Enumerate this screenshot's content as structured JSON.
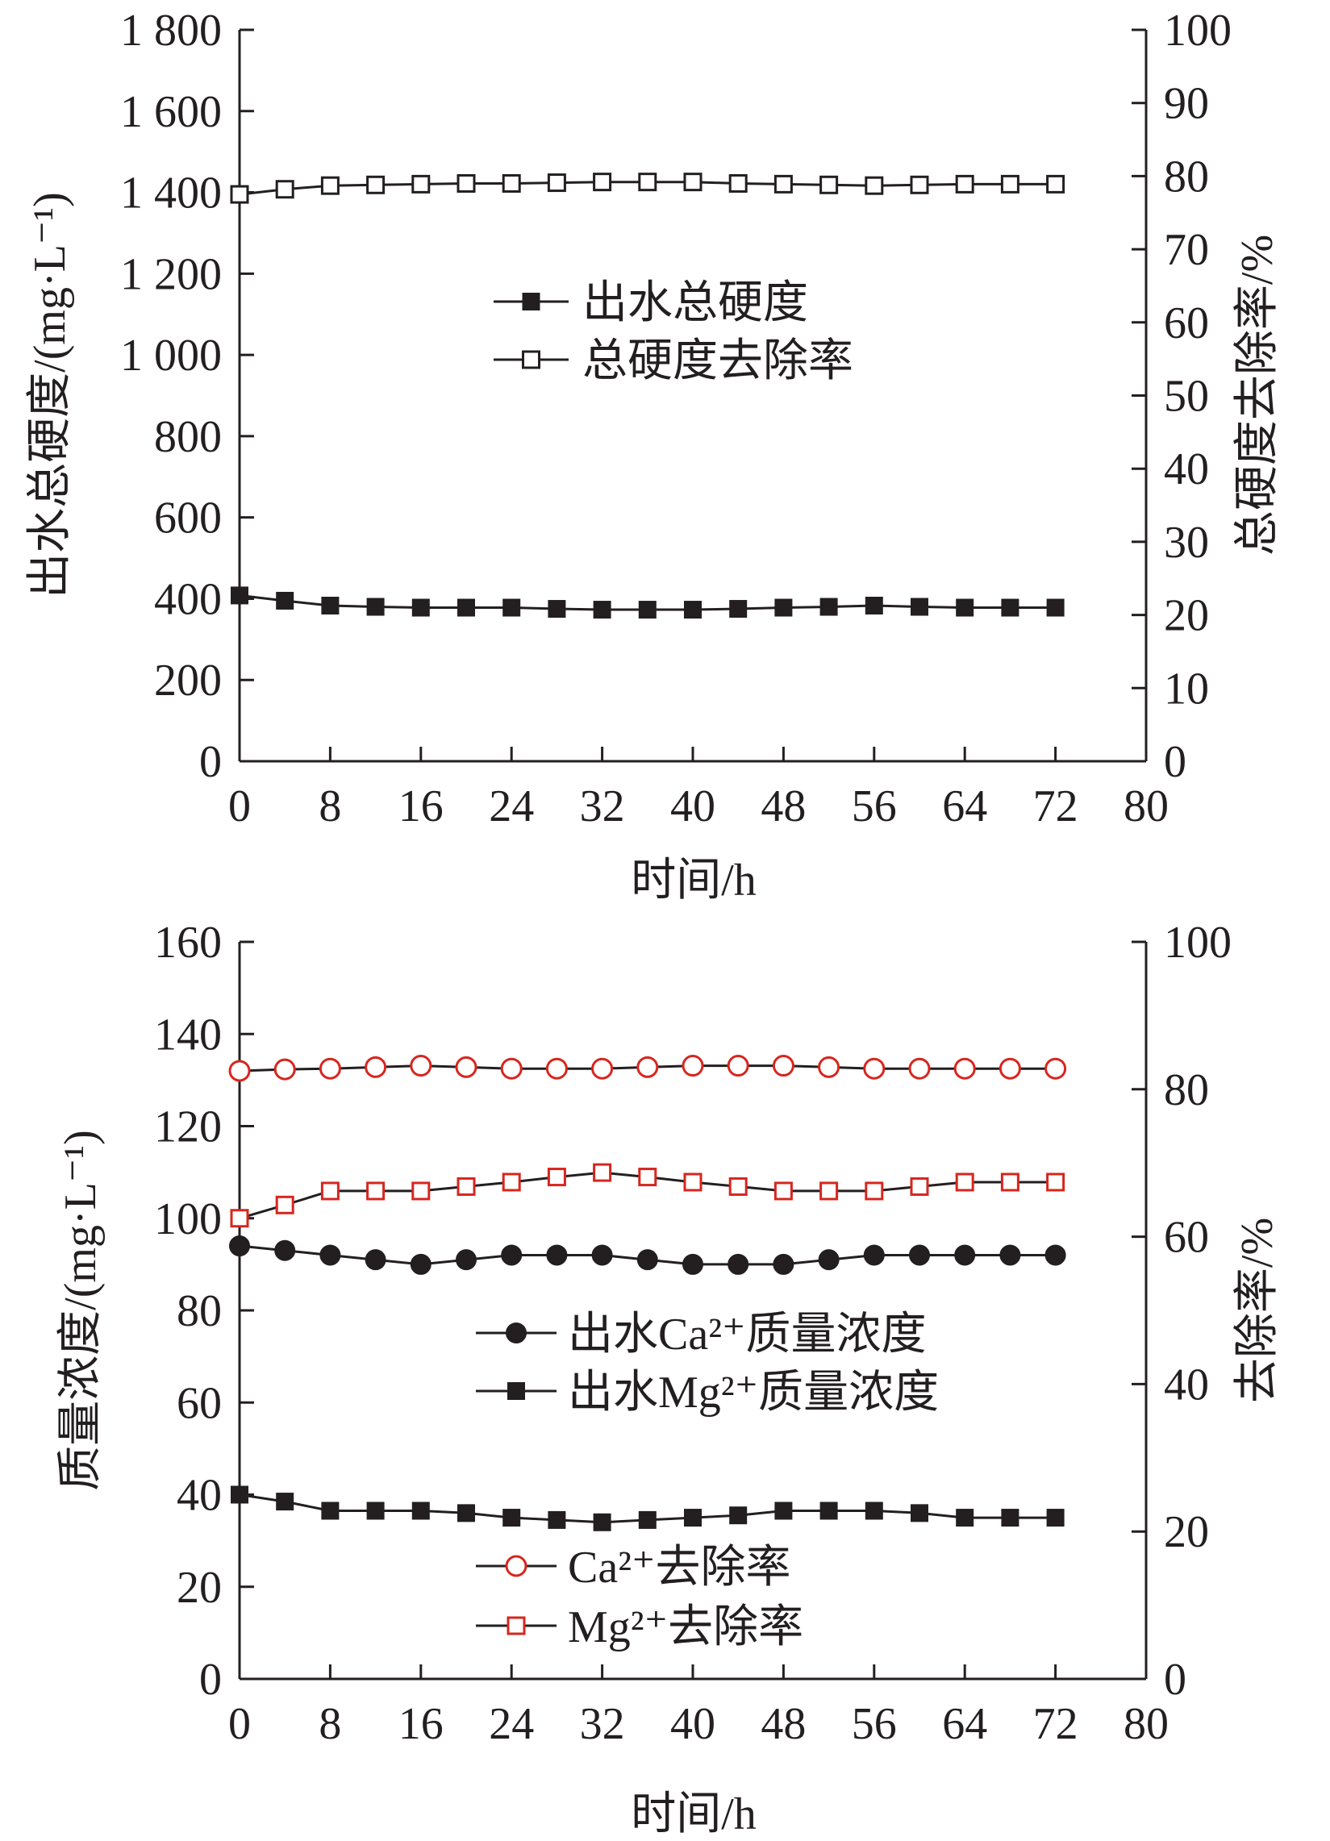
{
  "colors": {
    "axis": "#231f20",
    "dark_marker": "#231f20",
    "red_marker": "#d7261e"
  },
  "chart_data": [
    {
      "type": "line",
      "x": [
        0,
        4,
        8,
        12,
        16,
        20,
        24,
        28,
        32,
        36,
        40,
        44,
        48,
        52,
        56,
        60,
        64,
        68,
        72
      ],
      "xlim": [
        0,
        80
      ],
      "xticks": [
        "0",
        "8",
        "16",
        "24",
        "32",
        "40",
        "48",
        "56",
        "64",
        "72",
        "80"
      ],
      "xlabel": "时间/h",
      "ylabel_left": "出水总硬度/(mg·L⁻¹)",
      "ylim_left": [
        0,
        1800
      ],
      "yticks_left": [
        "0",
        "200",
        "400",
        "600",
        "800",
        "1 000",
        "1 200",
        "1 400",
        "1 600",
        "1 800"
      ],
      "ylabel_right": "总硬度去除率/%",
      "ylim_right": [
        0,
        100
      ],
      "yticks_right": [
        "0",
        "10",
        "20",
        "30",
        "40",
        "50",
        "60",
        "70",
        "80",
        "90",
        "100"
      ],
      "grid": false,
      "series": [
        {
          "name": "出水总硬度",
          "axis": "left",
          "marker": "square-filled",
          "color": "#231f20",
          "values": [
            408,
            395,
            383,
            380,
            378,
            378,
            378,
            375,
            373,
            373,
            373,
            375,
            378,
            380,
            383,
            380,
            378,
            378,
            378
          ]
        },
        {
          "name": "总硬度去除率",
          "axis": "right",
          "marker": "square-open",
          "color": "#231f20",
          "values": [
            77.5,
            78.2,
            78.7,
            78.8,
            78.9,
            79.0,
            79.0,
            79.1,
            79.2,
            79.2,
            79.2,
            79.0,
            78.9,
            78.8,
            78.7,
            78.8,
            78.9,
            78.9,
            78.9
          ]
        }
      ]
    },
    {
      "type": "line",
      "x": [
        0,
        4,
        8,
        12,
        16,
        20,
        24,
        28,
        32,
        36,
        40,
        44,
        48,
        52,
        56,
        60,
        64,
        68,
        72
      ],
      "xlim": [
        0,
        80
      ],
      "xticks": [
        "0",
        "8",
        "16",
        "24",
        "32",
        "40",
        "48",
        "56",
        "64",
        "72",
        "80"
      ],
      "xlabel": "时间/h",
      "ylabel_left": "质量浓度/(mg·L⁻¹)",
      "ylim_left": [
        0,
        160
      ],
      "yticks_left": [
        "0",
        "20",
        "40",
        "60",
        "80",
        "100",
        "120",
        "140",
        "160"
      ],
      "ylabel_right": "去除率/%",
      "ylim_right": [
        0,
        100
      ],
      "yticks_right": [
        "0",
        "20",
        "40",
        "60",
        "80",
        "100"
      ],
      "grid": false,
      "series": [
        {
          "name": "出水Ca²⁺质量浓度",
          "axis": "left",
          "marker": "circle-filled",
          "color": "#231f20",
          "values": [
            94,
            93,
            92,
            91,
            90,
            91,
            92,
            92,
            92,
            91,
            90,
            90,
            90,
            91,
            92,
            92,
            92,
            92,
            92
          ]
        },
        {
          "name": "出水Mg²⁺质量浓度",
          "axis": "left",
          "marker": "square-filled",
          "color": "#231f20",
          "values": [
            40,
            38.5,
            36.5,
            36.5,
            36.5,
            36,
            35,
            34.5,
            34,
            34.5,
            35,
            35.5,
            36.5,
            36.5,
            36.5,
            36,
            35,
            35,
            35
          ]
        },
        {
          "name": "Ca²⁺去除率",
          "axis": "right",
          "marker": "circle-open",
          "color": "#d7261e",
          "values": [
            82.5,
            82.7,
            82.8,
            83.0,
            83.2,
            83.0,
            82.8,
            82.8,
            82.8,
            83.0,
            83.2,
            83.2,
            83.2,
            83.0,
            82.8,
            82.8,
            82.8,
            82.8,
            82.8
          ]
        },
        {
          "name": "Mg²⁺去除率",
          "axis": "right",
          "marker": "square-open",
          "color": "#d7261e",
          "values": [
            62.5,
            64.3,
            66.2,
            66.2,
            66.2,
            66.8,
            67.4,
            68.1,
            68.7,
            68.1,
            67.4,
            66.8,
            66.2,
            66.2,
            66.2,
            66.8,
            67.4,
            67.4,
            67.4
          ]
        }
      ]
    }
  ]
}
